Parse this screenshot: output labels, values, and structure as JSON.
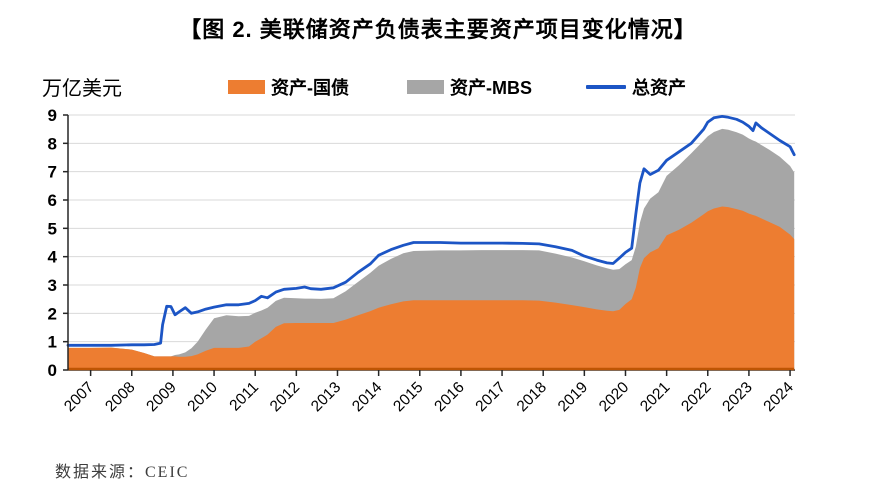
{
  "title": "【图 2. 美联储资产负债表主要资产项目变化情况】",
  "unit_label": "万亿美元",
  "source": "数据来源：CEIC",
  "legend": [
    {
      "label": "资产-国债",
      "color": "#ED7D31",
      "swatch": "area"
    },
    {
      "label": "资产-MBS",
      "color": "#A6A6A6",
      "swatch": "area"
    },
    {
      "label": "总资产",
      "color": "#1C55C5",
      "swatch": "line"
    }
  ],
  "colors": {
    "treasury": "#ED7D31",
    "mbs": "#A6A6A6",
    "total_line": "#1C55C5",
    "grid": "#D9D9D9",
    "axis": "#262626",
    "area_baseline": "#BE5504"
  },
  "chart_data": {
    "type": "area",
    "title": "美联储资产负债表主要资产项目变化情况",
    "xlabel": "",
    "ylabel": "万亿美元",
    "ylim": [
      0,
      9
    ],
    "x_range": [
      2006.45,
      2024.12
    ],
    "yticks": [
      0,
      1,
      2,
      3,
      4,
      5,
      6,
      7,
      8,
      9
    ],
    "xticks": [
      2007,
      2008,
      2009,
      2010,
      2011,
      2012,
      2013,
      2014,
      2015,
      2016,
      2017,
      2018,
      2019,
      2020,
      2021,
      2022,
      2023,
      2024
    ],
    "grid": "horizontal",
    "legend_position": "top",
    "x": [
      2006.45,
      2007.0,
      2007.5,
      2008.0,
      2008.3,
      2008.55,
      2008.7,
      2008.75,
      2008.85,
      2008.95,
      2009.05,
      2009.15,
      2009.3,
      2009.45,
      2009.6,
      2009.8,
      2010.0,
      2010.3,
      2010.6,
      2010.85,
      2011.0,
      2011.15,
      2011.3,
      2011.5,
      2011.7,
      2012.0,
      2012.2,
      2012.35,
      2012.6,
      2012.9,
      2013.2,
      2013.5,
      2013.8,
      2014.0,
      2014.3,
      2014.6,
      2014.85,
      2015.5,
      2016.0,
      2016.5,
      2017.0,
      2017.5,
      2017.9,
      2018.3,
      2018.7,
      2019.0,
      2019.3,
      2019.55,
      2019.7,
      2019.85,
      2020.0,
      2020.15,
      2020.25,
      2020.35,
      2020.45,
      2020.6,
      2020.8,
      2021.0,
      2021.3,
      2021.6,
      2021.9,
      2022.0,
      2022.15,
      2022.35,
      2022.5,
      2022.7,
      2022.85,
      2023.0,
      2023.1,
      2023.17,
      2023.3,
      2023.5,
      2023.75,
      2024.0,
      2024.1
    ],
    "series": [
      {
        "name": "资产-国债",
        "kind": "area-stacked",
        "color": "#ED7D31",
        "values": [
          0.78,
          0.78,
          0.79,
          0.72,
          0.6,
          0.48,
          0.48,
          0.48,
          0.48,
          0.48,
          0.48,
          0.47,
          0.47,
          0.49,
          0.55,
          0.68,
          0.78,
          0.78,
          0.78,
          0.83,
          1.0,
          1.12,
          1.25,
          1.52,
          1.65,
          1.66,
          1.66,
          1.66,
          1.66,
          1.66,
          1.78,
          1.93,
          2.08,
          2.2,
          2.32,
          2.42,
          2.46,
          2.46,
          2.46,
          2.46,
          2.46,
          2.46,
          2.45,
          2.38,
          2.29,
          2.22,
          2.14,
          2.09,
          2.07,
          2.12,
          2.33,
          2.5,
          2.9,
          3.6,
          3.95,
          4.15,
          4.3,
          4.75,
          4.95,
          5.2,
          5.5,
          5.6,
          5.7,
          5.77,
          5.75,
          5.68,
          5.62,
          5.52,
          5.47,
          5.44,
          5.35,
          5.22,
          5.05,
          4.78,
          4.62
        ]
      },
      {
        "name": "资产-MBS",
        "kind": "area-stacked",
        "color": "#A6A6A6",
        "values": [
          0,
          0,
          0,
          0,
          0,
          0,
          0,
          0,
          0,
          0,
          0.05,
          0.08,
          0.15,
          0.28,
          0.45,
          0.75,
          1.05,
          1.15,
          1.12,
          1.08,
          1.02,
          0.98,
          0.95,
          0.92,
          0.9,
          0.87,
          0.86,
          0.86,
          0.85,
          0.87,
          1.0,
          1.18,
          1.35,
          1.48,
          1.6,
          1.7,
          1.74,
          1.76,
          1.76,
          1.77,
          1.77,
          1.77,
          1.77,
          1.73,
          1.68,
          1.62,
          1.55,
          1.5,
          1.47,
          1.44,
          1.4,
          1.38,
          1.45,
          1.6,
          1.75,
          1.9,
          1.97,
          2.1,
          2.28,
          2.45,
          2.6,
          2.65,
          2.7,
          2.74,
          2.73,
          2.71,
          2.69,
          2.65,
          2.63,
          2.62,
          2.59,
          2.55,
          2.48,
          2.42,
          2.35
        ]
      },
      {
        "name": "总资产",
        "kind": "line",
        "color": "#1C55C5",
        "values": [
          0.87,
          0.87,
          0.87,
          0.89,
          0.89,
          0.9,
          0.95,
          1.6,
          2.25,
          2.24,
          1.95,
          2.05,
          2.2,
          2.0,
          2.05,
          2.15,
          2.22,
          2.3,
          2.3,
          2.35,
          2.45,
          2.6,
          2.55,
          2.75,
          2.85,
          2.88,
          2.93,
          2.87,
          2.85,
          2.9,
          3.1,
          3.45,
          3.75,
          4.05,
          4.25,
          4.4,
          4.5,
          4.5,
          4.48,
          4.48,
          4.48,
          4.47,
          4.45,
          4.35,
          4.22,
          4.02,
          3.88,
          3.78,
          3.76,
          3.95,
          4.15,
          4.3,
          5.5,
          6.6,
          7.1,
          6.9,
          7.05,
          7.4,
          7.7,
          8.0,
          8.5,
          8.75,
          8.9,
          8.95,
          8.92,
          8.85,
          8.75,
          8.6,
          8.45,
          8.72,
          8.55,
          8.35,
          8.1,
          7.88,
          7.6
        ]
      }
    ]
  }
}
